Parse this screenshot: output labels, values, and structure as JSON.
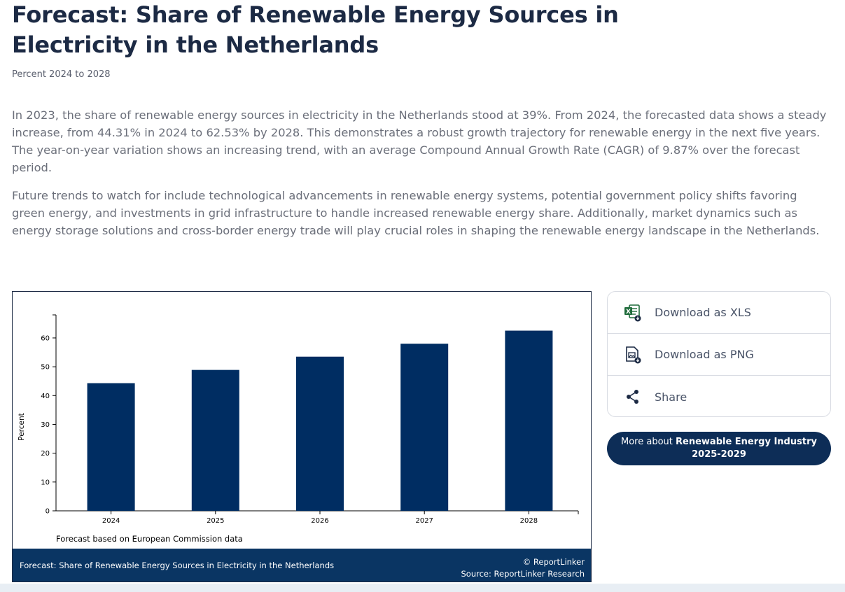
{
  "page": {
    "title": "Forecast: Share of Renewable Energy Sources in Electricity in the Netherlands",
    "subtitle": "Percent 2024 to 2028",
    "paragraph1": "In 2023, the share of renewable energy sources in electricity in the Netherlands stood at 39%. From 2024, the forecasted data shows a steady increase, from 44.31% in 2024 to 62.53% by 2028. This demonstrates a robust growth trajectory for renewable energy in the next five years. The year-on-year variation shows an increasing trend, with an average Compound Annual Growth Rate (CAGR) of 9.87% over the forecast period.",
    "paragraph2": "Future trends to watch for include technological advancements in renewable energy systems, potential government policy shifts favoring green energy, and investments in grid infrastructure to handle increased renewable energy share. Additionally, market dynamics such as energy storage solutions and cross-border energy trade will play crucial roles in shaping the renewable energy landscape in the Netherlands."
  },
  "chart_data": {
    "type": "bar",
    "categories": [
      "2024",
      "2025",
      "2026",
      "2027",
      "2028"
    ],
    "values": [
      44.31,
      48.9,
      53.5,
      58.0,
      62.53
    ],
    "ylabel": "Percent",
    "xlabel": "",
    "yticks": [
      0,
      10,
      20,
      30,
      40,
      50,
      60
    ],
    "ylim": [
      0,
      68
    ],
    "note": "Forecast based on European Commission data",
    "bar_color": "#002d62"
  },
  "chart_footer": {
    "title": "Forecast: Share of Renewable Energy Sources in Electricity in the Netherlands",
    "copyright": "© ReportLinker",
    "source": "Source:  ReportLinker Research"
  },
  "actions": {
    "xls": "Download as XLS",
    "png": "Download as PNG",
    "share": "Share"
  },
  "more_button": {
    "prefix": "More about ",
    "bold": "Renewable Energy Industry 2025-2029"
  },
  "colors": {
    "navy": "#0a3563",
    "button": "#0d2d57",
    "excel": "#1e6b3a"
  },
  "icons": {
    "xls": "excel-download-icon",
    "png": "image-download-icon",
    "share": "share-icon"
  }
}
